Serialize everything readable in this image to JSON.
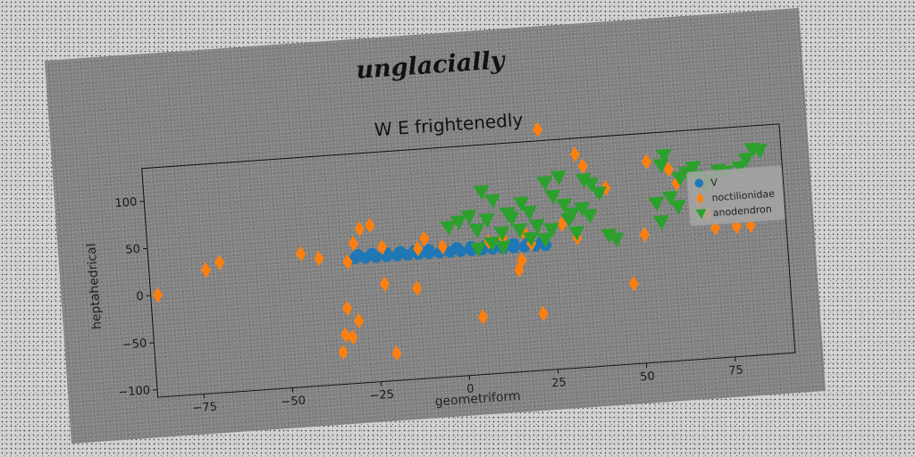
{
  "chart_data": {
    "type": "scatter",
    "suptitle": "unglacially",
    "title": "W E frightenedly",
    "xlabel": "geometriform",
    "ylabel": "heptahedrical",
    "xlim": [
      -88,
      92
    ],
    "ylim": [
      -108,
      135
    ],
    "x_ticks": [
      -75,
      -50,
      -25,
      0,
      25,
      50,
      75
    ],
    "y_ticks": [
      -100,
      -50,
      0,
      50,
      100
    ],
    "grid": false,
    "legend_position": "right",
    "series": [
      {
        "name": "V",
        "marker": "circle",
        "color": "#1f77b4",
        "points": [
          [
            -30,
            24
          ],
          [
            -27,
            24
          ],
          [
            -24,
            24
          ],
          [
            -21,
            24
          ],
          [
            -18,
            24
          ],
          [
            -15,
            24
          ],
          [
            -12,
            24
          ],
          [
            -9,
            24
          ],
          [
            -6,
            24
          ],
          [
            -3,
            24
          ],
          [
            0,
            24
          ],
          [
            3,
            24
          ],
          [
            6,
            24
          ],
          [
            9,
            24
          ],
          [
            12,
            24
          ],
          [
            15,
            24
          ],
          [
            18,
            24
          ],
          [
            21,
            24
          ],
          [
            24,
            24
          ],
          [
            -29,
            28
          ],
          [
            -25,
            28
          ],
          [
            -21,
            28
          ],
          [
            -17,
            28
          ],
          [
            -13,
            28
          ],
          [
            -9,
            28
          ],
          [
            -5,
            28
          ],
          [
            -1,
            28
          ],
          [
            3,
            28
          ],
          [
            7,
            28
          ],
          [
            11,
            28
          ],
          [
            15,
            28
          ],
          [
            19,
            28
          ],
          [
            23,
            28
          ]
        ]
      },
      {
        "name": "noctilionidae",
        "marker": "diamond",
        "color": "#ff7f0e",
        "points": [
          [
            -86,
            0
          ],
          [
            -72,
            23
          ],
          [
            -68,
            30
          ],
          [
            -45,
            33
          ],
          [
            -40,
            27
          ],
          [
            -32,
            21
          ],
          [
            -30,
            40
          ],
          [
            -28,
            55
          ],
          [
            -25,
            58
          ],
          [
            -22,
            34
          ],
          [
            -22,
            -5
          ],
          [
            -12,
            30
          ],
          [
            -10,
            40
          ],
          [
            -5,
            30
          ],
          [
            -13,
            -12
          ],
          [
            -33,
            -28
          ],
          [
            -30,
            -42
          ],
          [
            -34,
            -56
          ],
          [
            -32,
            -59
          ],
          [
            -35,
            -74
          ],
          [
            -20,
            -79
          ],
          [
            5,
            -47
          ],
          [
            8,
            32
          ],
          [
            12,
            35
          ],
          [
            20,
            27
          ],
          [
            18,
            40
          ],
          [
            17,
            10
          ],
          [
            16,
            0
          ],
          [
            22,
            -48
          ],
          [
            24,
            147
          ],
          [
            29,
            45
          ],
          [
            33,
            30
          ],
          [
            34,
            118
          ],
          [
            36,
            105
          ],
          [
            42,
            80
          ],
          [
            48,
            -23
          ],
          [
            52,
            28
          ],
          [
            54,
            105
          ],
          [
            60,
            95
          ],
          [
            62,
            80
          ],
          [
            68,
            60
          ],
          [
            70,
            45
          ],
          [
            72,
            30
          ],
          [
            78,
            30
          ],
          [
            82,
            30
          ]
        ]
      },
      {
        "name": "anodendron",
        "marker": "triangle-down",
        "color": "#2ca02c",
        "points": [
          [
            -3,
            50
          ],
          [
            0,
            55
          ],
          [
            3,
            60
          ],
          [
            5,
            45
          ],
          [
            7,
            85
          ],
          [
            8,
            55
          ],
          [
            10,
            75
          ],
          [
            12,
            40
          ],
          [
            12,
            25
          ],
          [
            15,
            55
          ],
          [
            18,
            70
          ],
          [
            20,
            60
          ],
          [
            22,
            45
          ],
          [
            24,
            30
          ],
          [
            26,
            40
          ],
          [
            27,
            75
          ],
          [
            29,
            95
          ],
          [
            30,
            65
          ],
          [
            31,
            50
          ],
          [
            32,
            55
          ],
          [
            33,
            35
          ],
          [
            35,
            60
          ],
          [
            36,
            90
          ],
          [
            38,
            85
          ],
          [
            40,
            75
          ],
          [
            42,
            30
          ],
          [
            44,
            25
          ],
          [
            56,
            60
          ],
          [
            57,
            40
          ],
          [
            58,
            100
          ],
          [
            59,
            110
          ],
          [
            60,
            65
          ],
          [
            62,
            55
          ],
          [
            63,
            85
          ],
          [
            65,
            90
          ],
          [
            67,
            95
          ],
          [
            68,
            85
          ],
          [
            70,
            75
          ],
          [
            72,
            80
          ],
          [
            74,
            90
          ],
          [
            76,
            88
          ],
          [
            80,
            92
          ],
          [
            82,
            100
          ],
          [
            84,
            110
          ],
          [
            86,
            108
          ],
          [
            5,
            25
          ],
          [
            9,
            30
          ],
          [
            14,
            60
          ],
          [
            17,
            42
          ],
          [
            20,
            32
          ],
          [
            25,
            90
          ],
          [
            37,
            52
          ]
        ]
      }
    ]
  }
}
